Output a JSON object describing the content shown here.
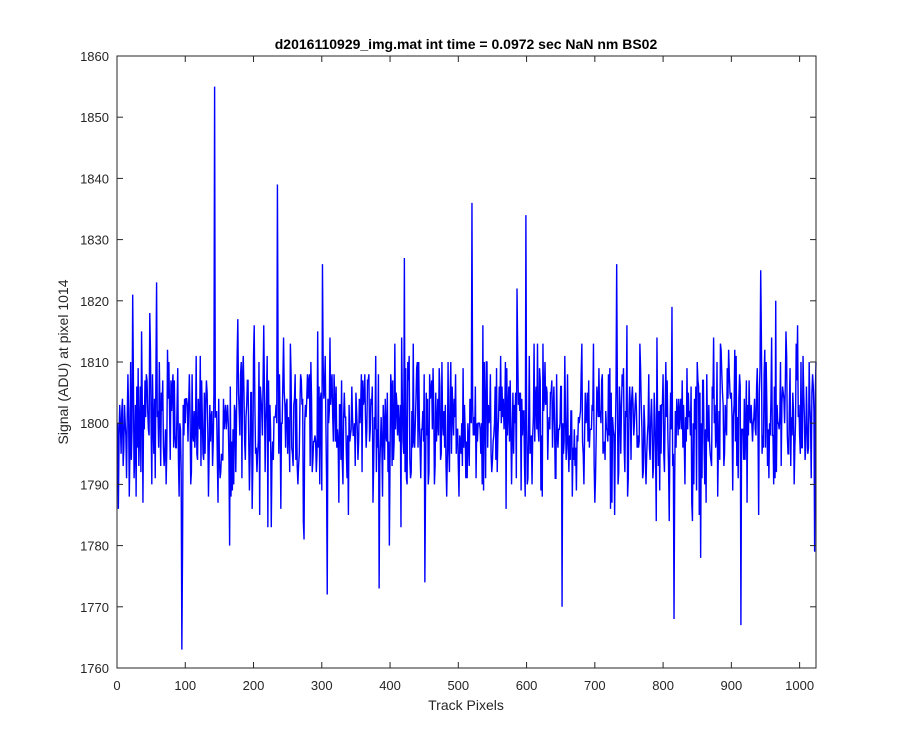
{
  "chart_data": {
    "type": "line",
    "title": "d2016110929_img.mat int time = 0.0972 sec  NaN nm BS02",
    "xlabel": "Track Pixels",
    "ylabel": "Signal (ADU) at pixel 1014",
    "xlim": [
      0,
      1024
    ],
    "ylim": [
      1760,
      1860
    ],
    "xticks": [
      0,
      100,
      200,
      300,
      400,
      500,
      600,
      700,
      800,
      900,
      1000
    ],
    "yticks": [
      1760,
      1770,
      1780,
      1790,
      1800,
      1810,
      1820,
      1830,
      1840,
      1850,
      1860
    ],
    "grid": false,
    "legend": "none",
    "line_color": "#0000ff",
    "series": [
      {
        "baseline": 1800,
        "noise_amplitude": 8,
        "n_points": 1024,
        "peaks": [
          {
            "x": 57,
            "y": 1823
          },
          {
            "x": 94,
            "y": 1763
          },
          {
            "x": 142,
            "y": 1855
          },
          {
            "x": 234,
            "y": 1839
          },
          {
            "x": 300,
            "y": 1826
          },
          {
            "x": 307,
            "y": 1772
          },
          {
            "x": 383,
            "y": 1773
          },
          {
            "x": 420,
            "y": 1827
          },
          {
            "x": 450,
            "y": 1774
          },
          {
            "x": 519,
            "y": 1836
          },
          {
            "x": 598,
            "y": 1834
          },
          {
            "x": 651,
            "y": 1770
          },
          {
            "x": 731,
            "y": 1826
          },
          {
            "x": 815,
            "y": 1768
          },
          {
            "x": 913,
            "y": 1767
          },
          {
            "x": 942,
            "y": 1825
          }
        ]
      }
    ]
  }
}
